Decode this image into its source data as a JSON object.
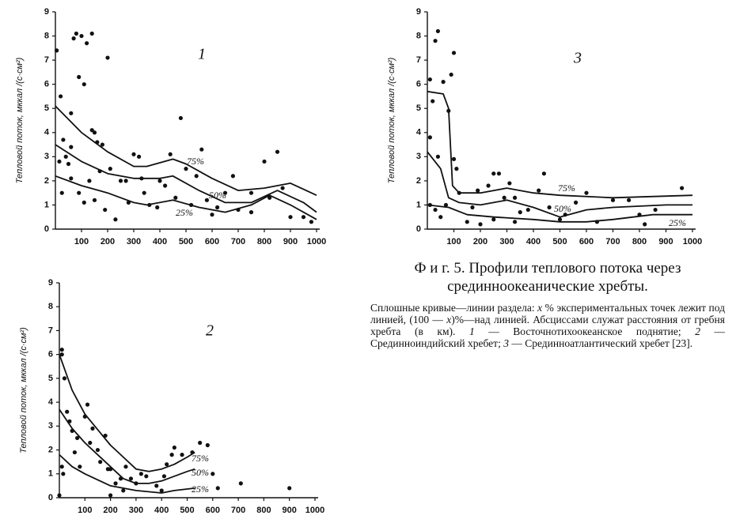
{
  "chart_data": [
    {
      "type": "scatter",
      "label": "1",
      "ylabel": "Тепловой поток, мккал /(с·см²)",
      "color": "#111111",
      "xlim": [
        0,
        1000
      ],
      "ylim": [
        0,
        9
      ],
      "xticks": [
        100,
        200,
        300,
        400,
        500,
        600,
        700,
        800,
        900,
        1000
      ],
      "yticks": [
        0,
        1,
        2,
        3,
        4,
        5,
        6,
        7,
        8,
        9
      ],
      "points": {
        "x": [
          5,
          20,
          30,
          40,
          60,
          70,
          80,
          90,
          100,
          110,
          120,
          140,
          150,
          160,
          180,
          200,
          210,
          250,
          280,
          300,
          320,
          340,
          360,
          400,
          440,
          460,
          480,
          500,
          520,
          560,
          580,
          600,
          650,
          700,
          750,
          800,
          820,
          850,
          870,
          900,
          950,
          980,
          15,
          25,
          50,
          60,
          90,
          110,
          130,
          150,
          170,
          190,
          230,
          270,
          330,
          390,
          420,
          540,
          620,
          680,
          750,
          60,
          140
        ],
        "y": [
          7.4,
          5.5,
          3.7,
          3,
          2.1,
          7.9,
          8.1,
          6.3,
          8.0,
          6,
          7.7,
          8.1,
          4,
          3.6,
          3.5,
          7.1,
          2.5,
          2,
          1.1,
          3.1,
          3,
          1.5,
          1,
          2,
          3.1,
          1.3,
          4.6,
          2.5,
          1,
          3.3,
          1.2,
          0.6,
          1.5,
          0.8,
          1.5,
          2.8,
          1.3,
          3.2,
          1.7,
          0.5,
          0.5,
          0.3,
          2.8,
          1.5,
          2.7,
          3.4,
          1.5,
          1.1,
          2,
          1.2,
          2.4,
          0.8,
          0.4,
          2,
          2.1,
          0.9,
          1.8,
          2.2,
          0.9,
          2.2,
          0.7,
          4.8,
          4.1
        ]
      },
      "series": [
        {
          "name": "75%",
          "x": [
            0,
            100,
            200,
            300,
            350,
            450,
            500,
            600,
            700,
            800,
            900,
            1000
          ],
          "values": [
            5.1,
            4,
            3.2,
            2.6,
            2.6,
            2.9,
            2.7,
            2.1,
            1.6,
            1.7,
            1.9,
            1.4
          ]
        },
        {
          "name": "50%",
          "x": [
            0,
            100,
            200,
            300,
            400,
            450,
            550,
            650,
            750,
            850,
            950,
            1000
          ],
          "values": [
            3.5,
            2.8,
            2.3,
            2.1,
            2.1,
            2.2,
            1.6,
            1.1,
            1.1,
            1.6,
            1.1,
            0.7
          ]
        },
        {
          "name": "25%",
          "x": [
            0,
            100,
            200,
            300,
            350,
            450,
            550,
            650,
            750,
            820,
            900,
            1000
          ],
          "values": [
            2.2,
            1.8,
            1.5,
            1.1,
            1,
            1.2,
            0.9,
            0.7,
            1,
            1.4,
            1,
            0.4
          ]
        }
      ]
    },
    {
      "type": "scatter",
      "label": "2",
      "ylabel": "Тепловой поток, мккал /(с·см²)",
      "color": "#111111",
      "xlim": [
        0,
        1000
      ],
      "ylim": [
        0,
        9
      ],
      "xticks": [
        100,
        200,
        300,
        400,
        500,
        600,
        700,
        800,
        900,
        1000
      ],
      "yticks": [
        0,
        1,
        2,
        3,
        4,
        5,
        6,
        7,
        8,
        9
      ],
      "points": {
        "x": [
          10,
          10,
          20,
          30,
          40,
          10,
          15,
          50,
          60,
          70,
          80,
          100,
          110,
          120,
          130,
          150,
          160,
          180,
          190,
          200,
          220,
          240,
          250,
          260,
          280,
          300,
          320,
          340,
          380,
          400,
          410,
          420,
          440,
          450,
          480,
          520,
          550,
          580,
          600,
          620,
          710,
          900,
          0,
          200
        ],
        "y": [
          6.2,
          6,
          5,
          3.6,
          3.2,
          1.3,
          1,
          2.8,
          1.9,
          2.5,
          1.3,
          3.4,
          3.9,
          2.3,
          2.9,
          2,
          1.5,
          2.6,
          1.2,
          1.2,
          0.6,
          0.8,
          0.3,
          1.3,
          0.8,
          0.6,
          1,
          0.9,
          0.5,
          0.3,
          0.9,
          1.4,
          1.8,
          2.1,
          1.8,
          1.9,
          2.3,
          2.2,
          1,
          0.4,
          0.6,
          0.4,
          0.1,
          0.1
        ]
      },
      "series": [
        {
          "name": "75%",
          "x": [
            0,
            50,
            100,
            200,
            250,
            300,
            350,
            400,
            450,
            500,
            530
          ],
          "values": [
            6,
            4.5,
            3.5,
            2.2,
            1.7,
            1.2,
            1.1,
            1.2,
            1.4,
            1.7,
            1.9
          ]
        },
        {
          "name": "50%",
          "x": [
            0,
            50,
            100,
            200,
            250,
            300,
            350,
            400,
            450,
            500,
            530
          ],
          "values": [
            3.7,
            2.9,
            2.3,
            1.3,
            0.8,
            0.6,
            0.6,
            0.7,
            0.9,
            1.1,
            1.2
          ]
        },
        {
          "name": "25%",
          "x": [
            0,
            50,
            100,
            200,
            300,
            400,
            450,
            530
          ],
          "values": [
            1.8,
            1.3,
            1,
            0.5,
            0.3,
            0.2,
            0.3,
            0.4
          ]
        }
      ]
    },
    {
      "type": "scatter",
      "label": "3",
      "ylabel": "Тепловой поток, мккал /(с·см²)",
      "color": "#111111",
      "xlim": [
        0,
        1000
      ],
      "ylim": [
        0,
        9
      ],
      "xticks": [
        100,
        200,
        300,
        400,
        500,
        600,
        700,
        800,
        900,
        1000
      ],
      "yticks": [
        0,
        1,
        2,
        3,
        4,
        5,
        6,
        7,
        8,
        9
      ],
      "points": {
        "x": [
          10,
          10,
          20,
          30,
          40,
          60,
          90,
          100,
          100,
          40,
          80,
          110,
          120,
          150,
          170,
          190,
          230,
          250,
          270,
          290,
          310,
          330,
          350,
          380,
          420,
          440,
          460,
          500,
          520,
          560,
          600,
          640,
          700,
          760,
          800,
          820,
          860,
          960,
          10,
          30,
          50,
          70,
          200,
          250,
          330
        ],
        "y": [
          6.2,
          3.8,
          5.3,
          7.8,
          8.2,
          6.1,
          6.4,
          7.3,
          2.9,
          3,
          4.9,
          2.5,
          1.5,
          0.3,
          0.9,
          1.6,
          1.8,
          2.3,
          2.3,
          1.3,
          1.9,
          0.3,
          0.7,
          0.8,
          1.6,
          2.3,
          0.9,
          0.4,
          0.6,
          1.1,
          1.5,
          0.3,
          1.2,
          1.2,
          0.6,
          0.2,
          0.8,
          1.7,
          1,
          0.8,
          0.5,
          1,
          0.2,
          0.4,
          1.3
        ]
      },
      "series": [
        {
          "name": "75%",
          "x": [
            0,
            60,
            80,
            95,
            120,
            200,
            300,
            400,
            500,
            700,
            1000
          ],
          "values": [
            5.7,
            5.6,
            5,
            1.8,
            1.5,
            1.5,
            1.7,
            1.5,
            1.4,
            1.3,
            1.4
          ]
        },
        {
          "name": "50%",
          "x": [
            0,
            50,
            80,
            120,
            200,
            300,
            400,
            500,
            600,
            700,
            900,
            1000
          ],
          "values": [
            3.2,
            2.5,
            1.3,
            1.1,
            1,
            1.2,
            0.9,
            0.5,
            0.8,
            0.9,
            1,
            1
          ]
        },
        {
          "name": "25%",
          "x": [
            0,
            80,
            150,
            250,
            400,
            500,
            600,
            700,
            850,
            1000
          ],
          "values": [
            1,
            0.9,
            0.6,
            0.5,
            0.4,
            0.3,
            0.3,
            0.4,
            0.6,
            0.6
          ]
        }
      ]
    }
  ],
  "caption": {
    "title": "Ф и г. 5. Профили теплового потока через срединноокеанические хребты.",
    "body": [
      "Сплошные кривые—линии раздела: ",
      "x",
      " % экспериментальных точек лежит под линией, (100 — ",
      "x",
      ")%—над линией. Абсциссами служат расстояния от гребня хребта (в км). ",
      "1",
      " — Восточнотихоокеанское поднятие; ",
      "2",
      " — Срединноиндийский хребет; ",
      "3",
      " — Срединноатлантический хребет [23]."
    ]
  }
}
